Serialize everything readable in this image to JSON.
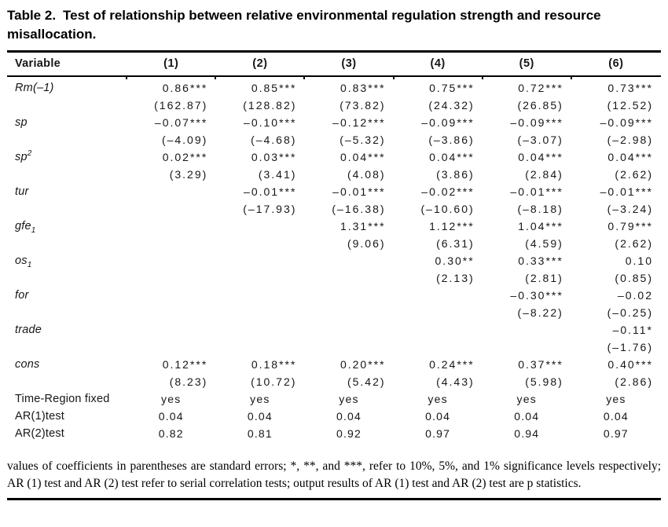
{
  "title": {
    "label": "Table 2.",
    "line1_rest": "Test of relationship between relative environmental regulation strength and resource",
    "line2": "misallocation."
  },
  "table": {
    "header": {
      "variable": "Variable",
      "columns": [
        "(1)",
        "(2)",
        "(3)",
        "(4)",
        "(5)",
        "(6)"
      ]
    },
    "rows": [
      {
        "label": "Rm(–1)",
        "sup": "",
        "sub": "",
        "coef": [
          "0.86***",
          "0.85***",
          "0.83***",
          "0.75***",
          "0.72***",
          "0.73***"
        ],
        "t": [
          "(162.87)",
          "(128.82)",
          "(73.82)",
          "(24.32)",
          "(26.85)",
          "(12.52)"
        ]
      },
      {
        "label": "sp",
        "sup": "",
        "sub": "",
        "coef": [
          "–0.07***",
          "–0.10***",
          "–0.12***",
          "–0.09***",
          "–0.09***",
          "–0.09***"
        ],
        "t": [
          "(–4.09)",
          "(–4.68)",
          "(–5.32)",
          "(–3.86)",
          "(–3.07)",
          "(–2.98)"
        ]
      },
      {
        "label": "sp",
        "sup": "2",
        "sub": "",
        "coef": [
          "0.02***",
          "0.03***",
          "0.04***",
          "0.04***",
          "0.04***",
          "0.04***"
        ],
        "t": [
          "(3.29)",
          "(3.41)",
          "(4.08)",
          "(3.86)",
          "(2.84)",
          "(2.62)"
        ]
      },
      {
        "label": "tur",
        "sup": "",
        "sub": "",
        "coef": [
          "",
          "–0.01***",
          "–0.01***",
          "–0.02***",
          "–0.01***",
          "–0.01***"
        ],
        "t": [
          "",
          "(–17.93)",
          "(–16.38)",
          "(–10.60)",
          "(–8.18)",
          "(–3.24)"
        ]
      },
      {
        "label": "gfe",
        "sup": "",
        "sub": "1",
        "coef": [
          "",
          "",
          "1.31***",
          "1.12***",
          "1.04***",
          "0.79***"
        ],
        "t": [
          "",
          "",
          "(9.06)",
          "(6.31)",
          "(4.59)",
          "(2.62)"
        ]
      },
      {
        "label": "os",
        "sup": "",
        "sub": "1",
        "coef": [
          "",
          "",
          "",
          "0.30**",
          "0.33***",
          "0.10"
        ],
        "t": [
          "",
          "",
          "",
          "(2.13)",
          "(2.81)",
          "(0.85)"
        ]
      },
      {
        "label": "for",
        "sup": "",
        "sub": "",
        "coef": [
          "",
          "",
          "",
          "",
          "–0.30***",
          "–0.02"
        ],
        "t": [
          "",
          "",
          "",
          "",
          "(–8.22)",
          "(–0.25)"
        ]
      },
      {
        "label": "trade",
        "sup": "",
        "sub": "",
        "coef": [
          "",
          "",
          "",
          "",
          "",
          "–0.11*"
        ],
        "t": [
          "",
          "",
          "",
          "",
          "",
          "(–1.76)"
        ]
      },
      {
        "label": "cons",
        "sup": "",
        "sub": "",
        "coef": [
          "0.12***",
          "0.18***",
          "0.20***",
          "0.24***",
          "0.37***",
          "0.40***"
        ],
        "t": [
          "(8.23)",
          "(10.72)",
          "(5.42)",
          "(4.43)",
          "(5.98)",
          "(2.86)"
        ]
      }
    ],
    "stat_rows": [
      {
        "label": "Time-Region fixed",
        "values": [
          "yes",
          "yes",
          "yes",
          "yes",
          "yes",
          "yes"
        ]
      },
      {
        "label": "AR(1)test",
        "values": [
          "0.04",
          "0.04",
          "0.04",
          "0.04",
          "0.04",
          "0.04"
        ]
      },
      {
        "label": "AR(2)test",
        "values": [
          "0.82",
          "0.81",
          "0.92",
          "0.97",
          "0.94",
          "0.97"
        ]
      }
    ]
  },
  "footnote": {
    "text": "values of coefficients in parentheses are standard errors; *, **, and ***, refer to 10%, 5%, and 1% significance levels respectively; AR (1) test and AR (2) test refer to serial correlation tests; output results of AR (1) test and AR (2) test are p statistics."
  }
}
